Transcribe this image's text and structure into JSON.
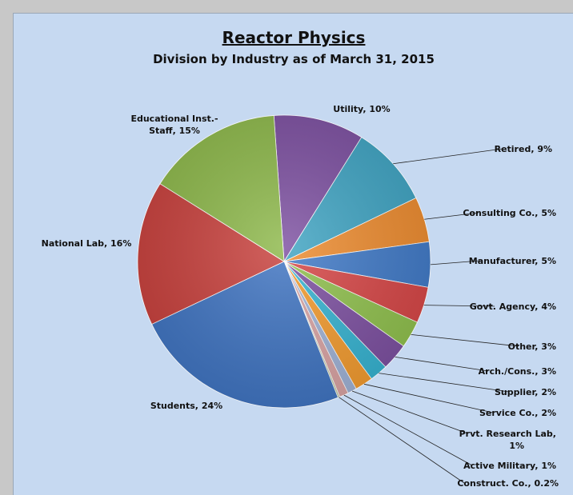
{
  "chart_data": {
    "type": "pie",
    "title": "Reactor Physics",
    "subtitle": "Division by Industry as of March 31, 2015",
    "slices": [
      {
        "label": "Utility, 10%",
        "value": 10,
        "color": "#7c4fa0"
      },
      {
        "label": "Retired, 9%",
        "value": 9,
        "color": "#3ea3c2"
      },
      {
        "label": "Consulting Co., 5%",
        "value": 5,
        "color": "#ed8b2e"
      },
      {
        "label": "Manufacturer, 5%",
        "value": 5,
        "color": "#3f79c7"
      },
      {
        "label": "Govt. Agency, 4%",
        "value": 4,
        "color": "#d64545"
      },
      {
        "label": "Other, 3%",
        "value": 3,
        "color": "#8fc04c"
      },
      {
        "label": "Arch./Cons., 3%",
        "value": 3,
        "color": "#7c4fa0"
      },
      {
        "label": "Supplier, 2%",
        "value": 2,
        "color": "#35b3d1"
      },
      {
        "label": "Service Co., 2%",
        "value": 2,
        "color": "#f39b2e"
      },
      {
        "label": "Prvt. Research Lab, 1%",
        "value": 1,
        "color": "#9fb2d6"
      },
      {
        "label": "Active Military, 1%",
        "value": 1,
        "color": "#d9a3a3"
      },
      {
        "label": "Construct. Co., 0.2%",
        "value": 0.2,
        "color": "#c0c8a0"
      },
      {
        "label": "Students, 24%",
        "value": 24,
        "color": "#3f74c2"
      },
      {
        "label": "National Lab, 16%",
        "value": 16,
        "color": "#c8403c"
      },
      {
        "label": "Educational Inst.- Staff, 15%",
        "value": 15,
        "color": "#8db84a"
      }
    ]
  }
}
